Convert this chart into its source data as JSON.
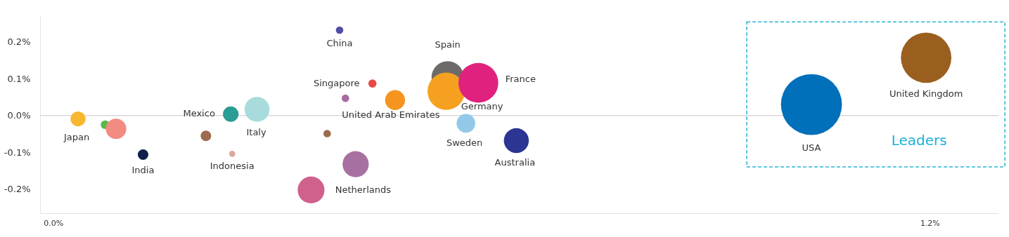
{
  "chart_data": {
    "type": "bubble",
    "xlim": [
      -0.018,
      1.294
    ],
    "ylim": [
      -0.265,
      0.27
    ],
    "xticks": [
      {
        "value": 0,
        "label": "0.0%"
      },
      {
        "value": 1.2,
        "label": "1.2%"
      }
    ],
    "yticks": [
      {
        "value": -0.2,
        "label": "-0.2%"
      },
      {
        "value": -0.1,
        "label": "-0.1%"
      },
      {
        "value": 0,
        "label": "0.0%"
      },
      {
        "value": 0.1,
        "label": "0.1%"
      },
      {
        "value": 0.2,
        "label": "0.2%"
      }
    ],
    "grid": false,
    "legend": false,
    "marker": "circle",
    "ref_lines": [
      {
        "axis": "y",
        "value": 0,
        "color": "#d9d9d9"
      }
    ],
    "annotations": [
      "Leaders"
    ],
    "series": [
      {
        "name": "Japan",
        "color": "#f7b731",
        "x": [
          0.034
        ],
        "values": [
          -0.009
        ],
        "sizes": [
          0.06
        ]
      },
      {
        "color": "#5cb84a",
        "x": [
          0.071
        ],
        "values": [
          -0.025
        ],
        "sizes": [
          0.02
        ]
      },
      {
        "color": "#f28b82",
        "x": [
          0.086
        ],
        "values": [
          -0.036
        ],
        "sizes": [
          0.113
        ]
      },
      {
        "name": "India",
        "color": "#0d1f4a",
        "x": [
          0.123
        ],
        "values": [
          -0.106
        ],
        "sizes": [
          0.03
        ]
      },
      {
        "color": "#9c6b50",
        "x": [
          0.209
        ],
        "values": [
          -0.055
        ],
        "sizes": [
          0.03
        ]
      },
      {
        "name": "Mexico",
        "color": "#2a9d94",
        "x": [
          0.243
        ],
        "values": [
          0.004
        ],
        "sizes": [
          0.065
        ]
      },
      {
        "name": "Indonesia",
        "color": "#d8a998",
        "x": [
          0.245
        ],
        "values": [
          -0.104
        ],
        "sizes": [
          0.01
        ]
      },
      {
        "name": "Italy",
        "color": "#a8dcdc",
        "x": [
          0.279
        ],
        "values": [
          0.017
        ],
        "sizes": [
          0.167
        ]
      },
      {
        "name": "China",
        "color": "#4f4fa8",
        "x": [
          0.392
        ],
        "values": [
          0.232
        ],
        "sizes": [
          0.015
        ]
      },
      {
        "name": "Singapore",
        "color": "#e84848",
        "x": [
          0.437
        ],
        "values": [
          0.087
        ],
        "sizes": [
          0.018
        ]
      },
      {
        "color": "#a86ca0",
        "x": [
          0.4
        ],
        "values": [
          0.047
        ],
        "sizes": [
          0.015
        ]
      },
      {
        "color": "#9c6b50",
        "x": [
          0.375
        ],
        "values": [
          -0.049
        ],
        "sizes": [
          0.015
        ]
      },
      {
        "name": "Netherlands",
        "color": "#d0608c",
        "x": [
          0.353
        ],
        "values": [
          -0.202
        ],
        "sizes": [
          0.193
        ]
      },
      {
        "color": "#a870a0",
        "x": [
          0.414
        ],
        "values": [
          -0.132
        ],
        "sizes": [
          0.184
        ]
      },
      {
        "name": "United Arab Emirates",
        "color": "#f5951f",
        "x": [
          0.468
        ],
        "values": [
          0.042
        ],
        "sizes": [
          0.107
        ]
      },
      {
        "name": "Spain",
        "color": "#6e6a6a",
        "x": [
          0.54
        ],
        "values": [
          0.104
        ],
        "sizes": [
          0.28
        ]
      },
      {
        "name": "Germany",
        "color": "#f5a11f",
        "x": [
          0.538
        ],
        "values": [
          0.066
        ],
        "sizes": [
          0.375
        ]
      },
      {
        "name": "France",
        "color": "#e0227e",
        "x": [
          0.582
        ],
        "values": [
          0.089
        ],
        "sizes": [
          0.426
        ]
      },
      {
        "name": "Sweden",
        "color": "#92c8e8",
        "x": [
          0.565
        ],
        "values": [
          -0.021
        ],
        "sizes": [
          0.094
        ]
      },
      {
        "name": "Australia",
        "color": "#2c3592",
        "x": [
          0.634
        ],
        "values": [
          -0.068
        ],
        "sizes": [
          0.167
        ]
      },
      {
        "name": "USA",
        "color": "#0070bb",
        "x": [
          1.038
        ],
        "values": [
          0.03
        ],
        "sizes": [
          1
        ]
      },
      {
        "name": "United Kingdom",
        "color": "#9a5f1f",
        "x": [
          1.195
        ],
        "values": [
          0.157
        ],
        "sizes": [
          0.683
        ]
      }
    ]
  }
}
